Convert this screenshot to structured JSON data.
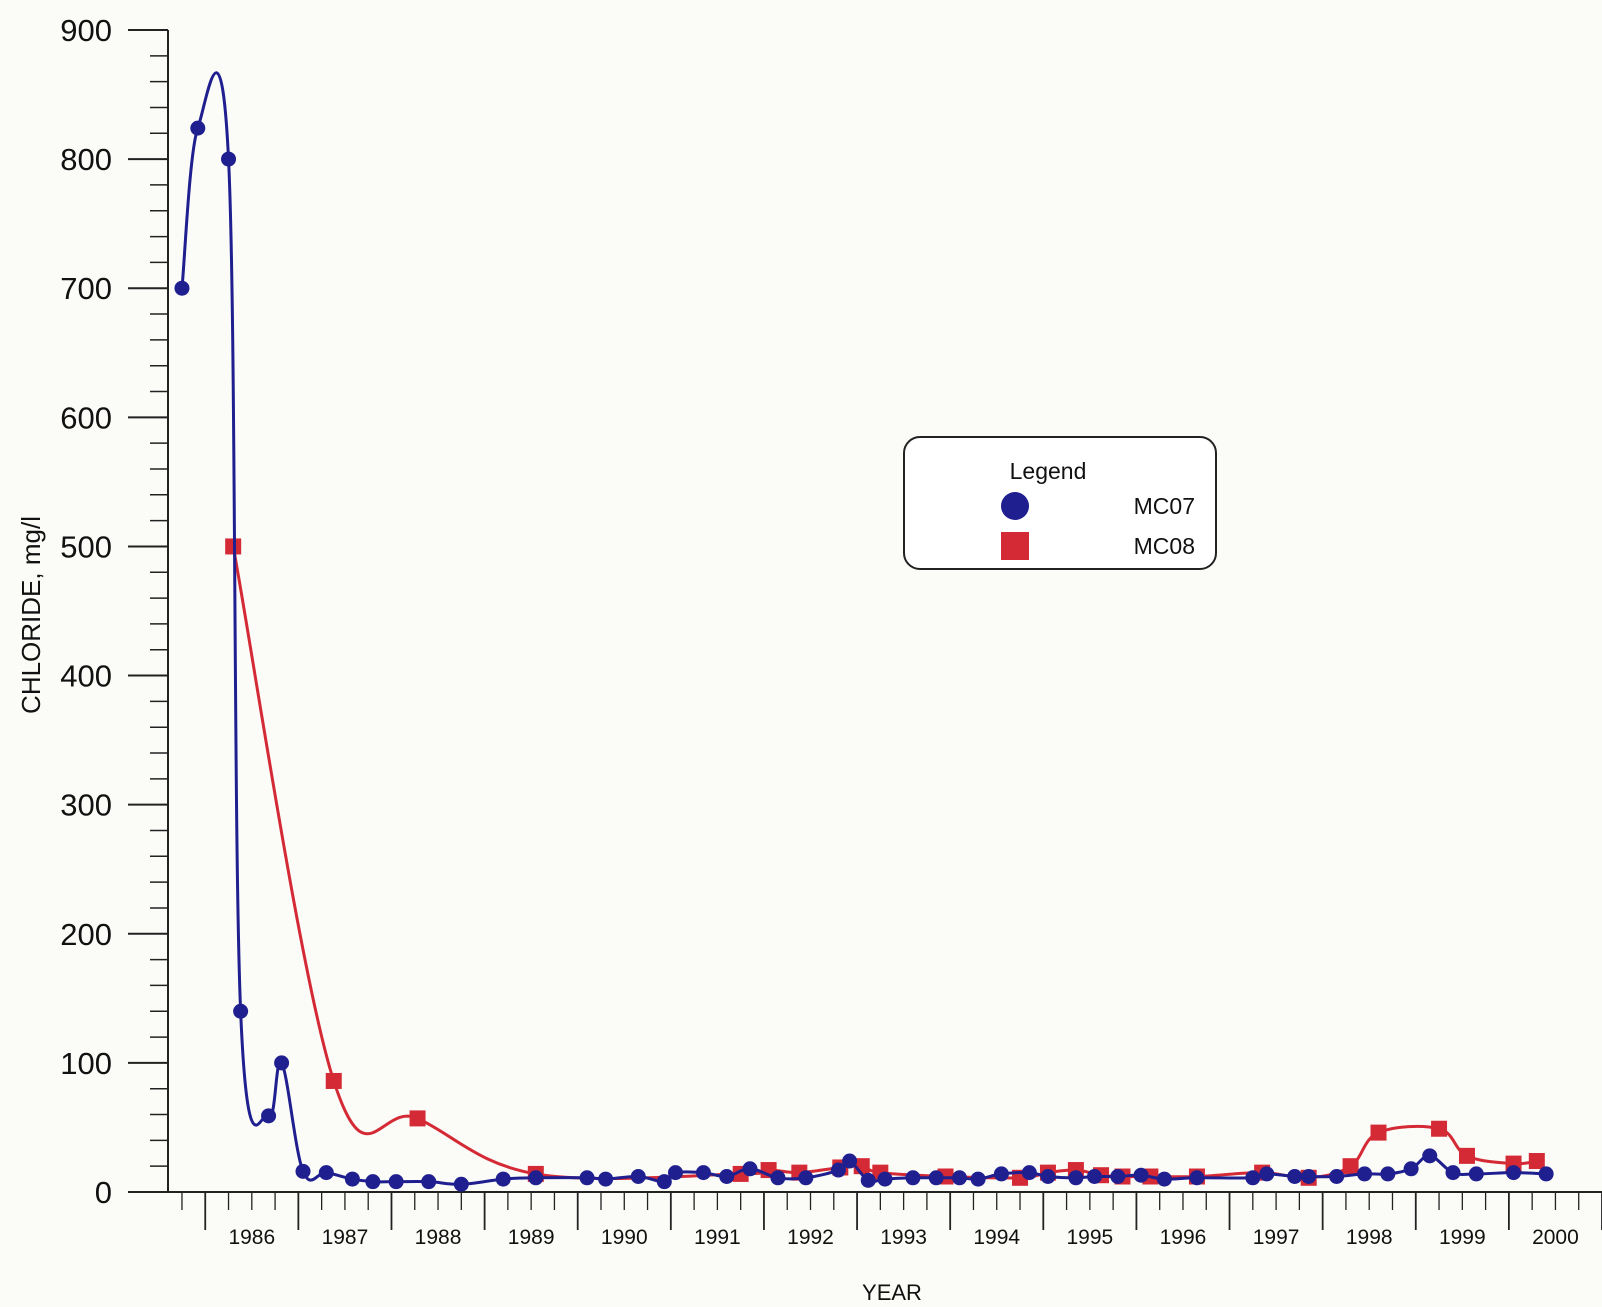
{
  "chart_data": {
    "type": "line",
    "title": "",
    "xlabel": "YEAR",
    "ylabel": "CHLORIDE, mg/l",
    "xlim": [
      1985.6,
      2001.0
    ],
    "ylim": [
      0,
      900
    ],
    "y_ticks": [
      0,
      100,
      200,
      300,
      400,
      500,
      600,
      700,
      800,
      900
    ],
    "x_tick_labels": [
      "1986",
      "1987",
      "1988",
      "1989",
      "1990",
      "1991",
      "1992",
      "1993",
      "1994",
      "1995",
      "1996",
      "1997",
      "1998",
      "1999",
      "2000"
    ],
    "grid": false,
    "legend": {
      "title": "Legend",
      "placement": "center-right"
    },
    "series": [
      {
        "name": "MC07",
        "color": "#1f1f8f",
        "marker": "circle",
        "x": [
          1985.75,
          1985.92,
          1986.25,
          1986.38,
          1986.68,
          1986.82,
          1987.05,
          1987.3,
          1987.58,
          1987.8,
          1988.05,
          1988.4,
          1988.75,
          1989.2,
          1989.55,
          1990.1,
          1990.3,
          1990.65,
          1990.93,
          1991.05,
          1991.35,
          1991.6,
          1991.85,
          1992.15,
          1992.45,
          1992.8,
          1992.92,
          1993.12,
          1993.3,
          1993.6,
          1993.85,
          1994.1,
          1994.3,
          1994.55,
          1994.85,
          1995.05,
          1995.35,
          1995.55,
          1995.8,
          1996.05,
          1996.3,
          1996.65,
          1997.25,
          1997.4,
          1997.7,
          1997.85,
          1998.15,
          1998.45,
          1998.7,
          1998.95,
          1999.15,
          1999.4,
          1999.65,
          2000.05,
          2000.4
        ],
        "y": [
          700,
          824,
          800,
          140,
          59,
          100,
          16,
          15,
          10,
          8,
          8,
          8,
          6,
          10,
          11,
          11,
          10,
          12,
          8,
          15,
          15,
          12,
          18,
          11,
          11,
          17,
          24,
          9,
          10,
          11,
          11,
          11,
          10,
          14,
          15,
          12,
          11,
          12,
          12,
          13,
          10,
          11,
          11,
          14,
          12,
          12,
          12,
          14,
          14,
          18,
          28,
          15,
          14,
          15,
          14
        ]
      },
      {
        "name": "MC08",
        "color": "#d42a36",
        "marker": "square",
        "x": [
          1986.3,
          1987.38,
          1988.28,
          1989.55,
          1991.75,
          1992.05,
          1992.38,
          1992.82,
          1993.05,
          1993.25,
          1993.95,
          1994.75,
          1995.05,
          1995.35,
          1995.62,
          1995.85,
          1996.15,
          1996.65,
          1997.35,
          1997.85,
          1998.3,
          1998.6,
          1999.25,
          1999.55,
          2000.05,
          2000.3
        ],
        "y": [
          500,
          86,
          57,
          14,
          14,
          17,
          15,
          19,
          20,
          15,
          12,
          11,
          15,
          17,
          13,
          12,
          12,
          12,
          15,
          11,
          20,
          46,
          49,
          28,
          22,
          24
        ]
      }
    ]
  }
}
